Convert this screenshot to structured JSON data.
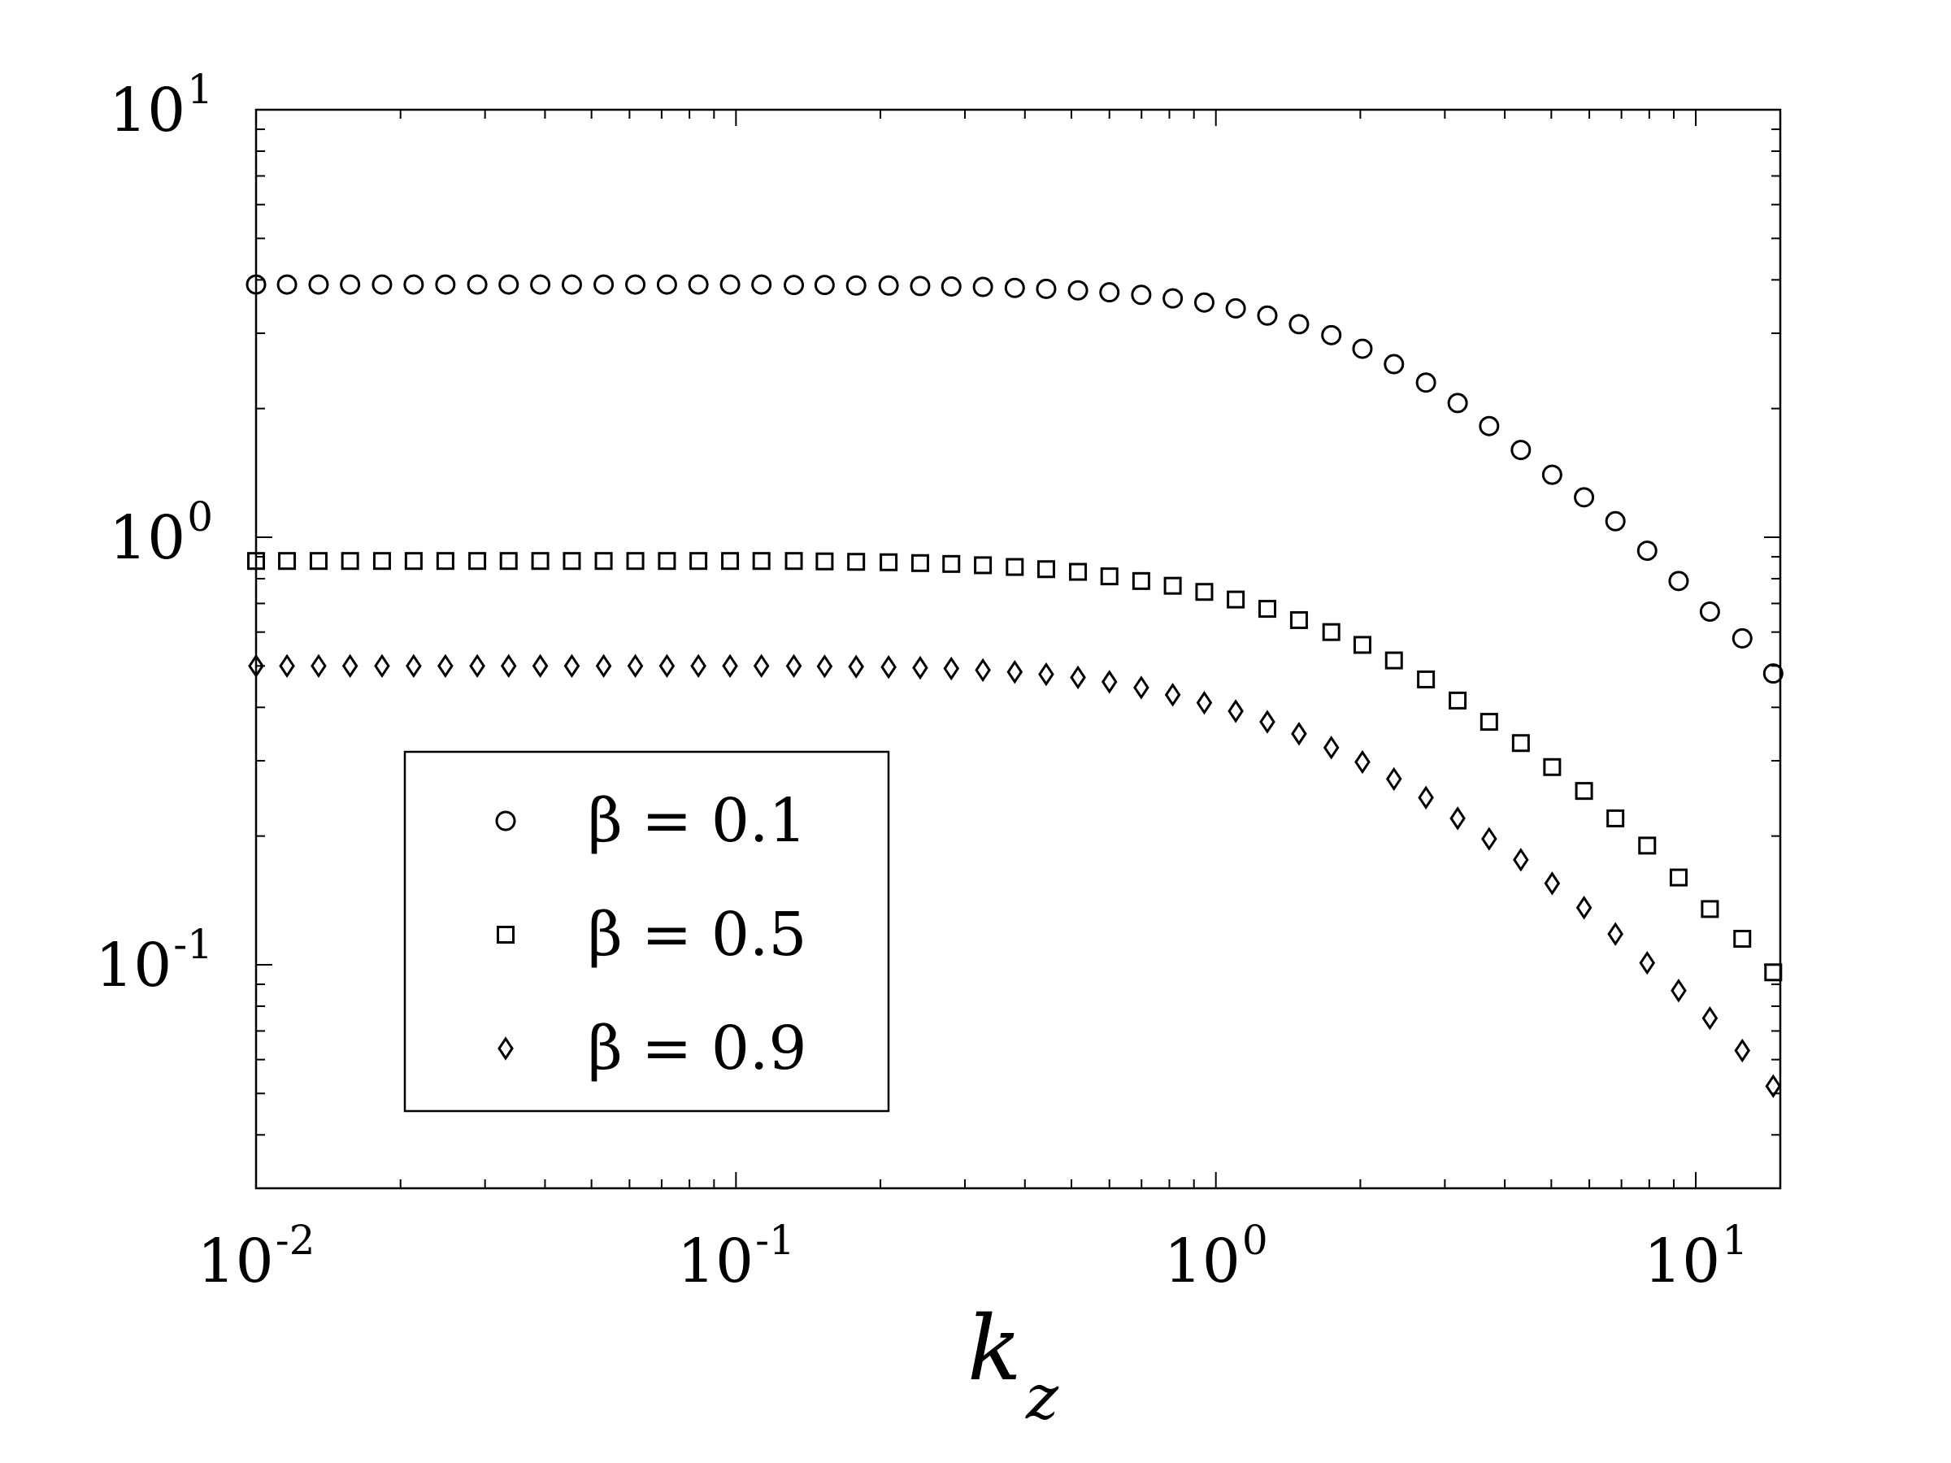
{
  "chart_data": {
    "type": "scatter",
    "title": "",
    "xlabel": "k",
    "xlabel_subscript": "z",
    "ylabel": "",
    "xscale": "log",
    "yscale": "log",
    "xlim": [
      0.01,
      15
    ],
    "ylim": [
      0.03,
      10
    ],
    "grid": false,
    "legend_position": "lower-left",
    "x_tick_labels": [
      {
        "value": 0.01,
        "base": "10",
        "exp": "-2"
      },
      {
        "value": 0.1,
        "base": "10",
        "exp": "-1"
      },
      {
        "value": 1,
        "base": "10",
        "exp": "0"
      },
      {
        "value": 10,
        "base": "10",
        "exp": "1"
      }
    ],
    "y_tick_labels": [
      {
        "value": 0.1,
        "base": "10",
        "exp": "-1"
      },
      {
        "value": 1,
        "base": "10",
        "exp": "0"
      },
      {
        "value": 10,
        "base": "10",
        "exp": "1"
      }
    ],
    "x": [
      0.01,
      0.0116,
      0.0135,
      0.0157,
      0.0183,
      0.0213,
      0.0248,
      0.0289,
      0.0336,
      0.0391,
      0.0455,
      0.053,
      0.0617,
      0.0718,
      0.0835,
      0.0972,
      0.113,
      0.132,
      0.153,
      0.178,
      0.208,
      0.242,
      0.281,
      0.327,
      0.381,
      0.443,
      0.516,
      0.6,
      0.699,
      0.813,
      0.946,
      1.1,
      1.28,
      1.49,
      1.74,
      2.02,
      2.35,
      2.74,
      3.19,
      3.71,
      4.32,
      5.02,
      5.85,
      6.8,
      7.92,
      9.21,
      10.7,
      12.5,
      14.5
    ],
    "series": [
      {
        "name": "β = 0.1",
        "marker": "circle",
        "values": [
          3.9,
          3.9,
          3.9,
          3.9,
          3.9,
          3.9,
          3.9,
          3.9,
          3.9,
          3.9,
          3.9,
          3.9,
          3.9,
          3.9,
          3.9,
          3.9,
          3.9,
          3.89,
          3.89,
          3.88,
          3.88,
          3.87,
          3.86,
          3.85,
          3.83,
          3.81,
          3.78,
          3.74,
          3.69,
          3.62,
          3.54,
          3.43,
          3.3,
          3.15,
          2.97,
          2.76,
          2.54,
          2.3,
          2.06,
          1.82,
          1.6,
          1.4,
          1.24,
          1.09,
          0.93,
          0.79,
          0.67,
          0.58,
          0.48
        ]
      },
      {
        "name": "β = 0.5",
        "marker": "square",
        "values": [
          0.88,
          0.88,
          0.88,
          0.88,
          0.88,
          0.88,
          0.88,
          0.88,
          0.88,
          0.88,
          0.88,
          0.88,
          0.88,
          0.88,
          0.88,
          0.88,
          0.88,
          0.88,
          0.878,
          0.876,
          0.874,
          0.87,
          0.866,
          0.86,
          0.852,
          0.842,
          0.83,
          0.81,
          0.79,
          0.77,
          0.745,
          0.715,
          0.68,
          0.64,
          0.6,
          0.56,
          0.515,
          0.465,
          0.415,
          0.37,
          0.33,
          0.29,
          0.255,
          0.22,
          0.19,
          0.16,
          0.135,
          0.115,
          0.096
        ]
      },
      {
        "name": "β = 0.9",
        "marker": "diamond",
        "values": [
          0.5,
          0.5,
          0.5,
          0.5,
          0.5,
          0.5,
          0.5,
          0.5,
          0.5,
          0.5,
          0.5,
          0.5,
          0.5,
          0.5,
          0.5,
          0.5,
          0.5,
          0.5,
          0.499,
          0.498,
          0.497,
          0.495,
          0.493,
          0.489,
          0.484,
          0.478,
          0.47,
          0.459,
          0.445,
          0.428,
          0.41,
          0.392,
          0.37,
          0.347,
          0.322,
          0.298,
          0.272,
          0.246,
          0.22,
          0.197,
          0.176,
          0.155,
          0.136,
          0.118,
          0.101,
          0.087,
          0.075,
          0.063,
          0.052
        ]
      }
    ]
  }
}
